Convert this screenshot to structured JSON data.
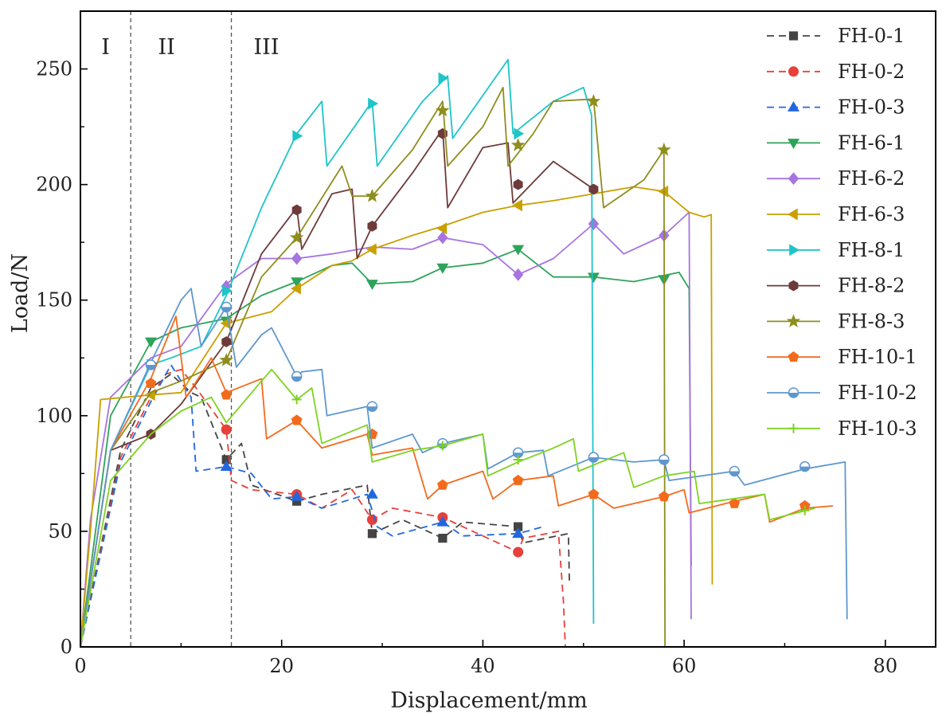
{
  "chart_data": {
    "type": "line",
    "title": "",
    "xlabel": "Displacement/mm",
    "ylabel": "Load/N",
    "xlim": [
      0,
      85
    ],
    "ylim": [
      0,
      275
    ],
    "xticks": [
      0,
      20,
      40,
      60,
      80
    ],
    "yticks": [
      0,
      50,
      100,
      150,
      200,
      250
    ],
    "grid": false,
    "legend_position": "top-right",
    "regions": [
      {
        "label": "I",
        "x_start": 0,
        "x_end": 5
      },
      {
        "label": "II",
        "x_start": 5,
        "x_end": 15
      },
      {
        "label": "III",
        "x_start": 15,
        "x_end": 85
      }
    ],
    "boundaries": [
      5,
      15
    ],
    "series": [
      {
        "name": "FH-0-1",
        "color": "#444444",
        "marker": "square",
        "dashed": true,
        "x": [
          0,
          4,
          7,
          9,
          11,
          12,
          14.5,
          16,
          17,
          21.5,
          24,
          28.5,
          29,
          32,
          36,
          38,
          43.5,
          44,
          48.5,
          48.6
        ],
        "y": [
          0,
          85,
          112,
          118,
          110,
          108,
          81,
          88,
          70,
          63,
          66,
          70,
          49,
          55,
          47,
          54,
          52,
          45,
          49,
          27
        ],
        "marker_x": [
          14.5,
          21.5,
          29,
          36,
          43.5
        ],
        "marker_y": [
          81,
          63,
          49,
          47,
          52
        ]
      },
      {
        "name": "FH-0-2",
        "color": "#e8403a",
        "marker": "circle",
        "dashed": true,
        "x": [
          0,
          4,
          7,
          8.5,
          10,
          11.5,
          14.5,
          15,
          17,
          21.5,
          24,
          27,
          29,
          31,
          36,
          38,
          43.5,
          44,
          47.5,
          48,
          48.2
        ],
        "y": [
          0,
          82,
          108,
          118,
          120,
          112,
          94,
          72,
          68,
          66,
          60,
          68,
          55,
          60,
          56,
          52,
          41,
          47,
          50,
          20,
          0
        ],
        "marker_x": [
          14.5,
          21.5,
          29,
          36,
          43.5
        ],
        "marker_y": [
          94,
          66,
          55,
          56,
          41
        ]
      },
      {
        "name": "FH-0-3",
        "color": "#2168e0",
        "marker": "triangle",
        "dashed": true,
        "x": [
          0,
          4,
          7,
          9,
          11,
          11.5,
          14.5,
          17,
          19,
          21.5,
          24,
          28.5,
          29.5,
          31,
          36,
          38,
          43.5,
          46
        ],
        "y": [
          0,
          80,
          106,
          122,
          108,
          76,
          78,
          75,
          64,
          65,
          60,
          66,
          52,
          48,
          54,
          48,
          49,
          52
        ],
        "marker_x": [
          14.5,
          21.5,
          29,
          36,
          43.5
        ],
        "marker_y": [
          78,
          65,
          66,
          54,
          49
        ]
      },
      {
        "name": "FH-6-1",
        "color": "#2ea35a",
        "marker": "triangle-down",
        "dashed": true,
        "x": [
          0,
          3,
          7,
          10,
          14.5,
          18,
          21.5,
          25,
          27,
          29,
          33,
          36,
          40,
          43.5,
          47,
          51,
          55,
          59.5,
          60.5,
          60.7
        ],
        "y": [
          0,
          100,
          132,
          138,
          142,
          152,
          158,
          165,
          166,
          157,
          158,
          164,
          166,
          172,
          160,
          160,
          158,
          162,
          155,
          35
        ],
        "marker_x": [
          7,
          14.5,
          21.5,
          29,
          36,
          43.5,
          51,
          58
        ],
        "marker_y": [
          132,
          141,
          158,
          157,
          164,
          172,
          160,
          159
        ]
      },
      {
        "name": "FH-6-2",
        "color": "#a774e0",
        "marker": "diamond",
        "dashed": true,
        "x": [
          0,
          1,
          3,
          7,
          10,
          14.5,
          18,
          21.5,
          25,
          29,
          33,
          36,
          40,
          43.5,
          47,
          51,
          54,
          58,
          60.5,
          60.7
        ],
        "y": [
          0,
          55,
          108,
          125,
          130,
          157,
          168,
          168,
          170,
          173,
          172,
          177,
          174,
          161,
          168,
          183,
          170,
          178,
          188,
          12
        ],
        "marker_x": [
          14.5,
          21.5,
          36,
          43.5,
          51,
          58
        ],
        "marker_y": [
          156,
          168,
          177,
          161,
          183,
          178
        ]
      },
      {
        "name": "FH-6-3",
        "color": "#c9a000",
        "marker": "triangle-left",
        "dashed": true,
        "x": [
          0,
          1,
          2,
          7,
          10,
          14.5,
          19,
          21.5,
          25,
          27,
          29,
          33,
          36,
          40,
          43.5,
          47,
          51,
          55,
          58,
          60.5,
          62,
          62.7,
          62.8
        ],
        "y": [
          0,
          50,
          107,
          109,
          110,
          140,
          145,
          155,
          165,
          167,
          172,
          178,
          182,
          188,
          191,
          193,
          196,
          199,
          197,
          188,
          186,
          187,
          27
        ],
        "marker_x": [
          7,
          14.5,
          21.5,
          29,
          36,
          43.5,
          58
        ],
        "marker_y": [
          109,
          140,
          155,
          172,
          181,
          191,
          197
        ]
      },
      {
        "name": "FH-8-1",
        "color": "#1ec4c8",
        "marker": "triangle-right",
        "dashed": true,
        "x": [
          0,
          3,
          7,
          9,
          12,
          14.5,
          18,
          21.5,
          24,
          24.5,
          29,
          29.5,
          34,
          36.5,
          37,
          42.5,
          43,
          47,
          50,
          50.8,
          51
        ],
        "y": [
          0,
          85,
          122,
          125,
          130,
          152,
          190,
          222,
          236,
          208,
          236,
          208,
          236,
          247,
          220,
          254,
          222,
          236,
          242,
          230,
          10
        ],
        "marker_x": [
          7,
          14.5,
          21.5,
          29,
          36,
          43.5
        ],
        "marker_y": [
          122,
          154,
          221,
          235,
          246,
          222
        ]
      },
      {
        "name": "FH-8-2",
        "color": "#6e3a3a",
        "marker": "hexagon",
        "dashed": true,
        "x": [
          0,
          3,
          7,
          10,
          14.5,
          18,
          21.5,
          22,
          25,
          27,
          27.5,
          29,
          33,
          36,
          36.5,
          40,
          42.5,
          43,
          47,
          51
        ],
        "y": [
          0,
          85,
          92,
          105,
          132,
          170,
          190,
          172,
          196,
          198,
          168,
          182,
          205,
          224,
          190,
          216,
          218,
          192,
          210,
          198
        ],
        "marker_x": [
          7,
          14.5,
          21.5,
          29,
          36,
          43.5,
          51
        ],
        "marker_y": [
          92,
          132,
          189,
          182,
          222,
          200,
          198
        ]
      },
      {
        "name": "FH-8-3",
        "color": "#8e8e1e",
        "marker": "star",
        "dashed": true,
        "x": [
          0,
          3,
          7,
          10,
          14.5,
          18,
          21.5,
          26,
          27,
          29,
          33,
          36,
          36.5,
          40,
          42,
          42.5,
          45,
          47,
          51,
          52,
          56,
          58,
          58.1
        ],
        "y": [
          0,
          85,
          110,
          115,
          124,
          160,
          177,
          208,
          195,
          195,
          215,
          236,
          208,
          225,
          242,
          208,
          222,
          236,
          237,
          190,
          202,
          215,
          0
        ],
        "marker_x": [
          14.5,
          21.5,
          29,
          36,
          43.5,
          51,
          58
        ],
        "marker_y": [
          124,
          177,
          195,
          232,
          217,
          236,
          215
        ]
      },
      {
        "name": "FH-10-1",
        "color": "#f26b1d",
        "marker": "pentagon",
        "dashed": true,
        "x": [
          0,
          3,
          7,
          9.5,
          10.5,
          12,
          13,
          14.5,
          18,
          18.5,
          21.5,
          24,
          28.5,
          29,
          33,
          34.5,
          36,
          40,
          41,
          43.5,
          47,
          47.5,
          51,
          53,
          58,
          60,
          60.5,
          65,
          68,
          68.5,
          72,
          74.8
        ],
        "y": [
          0,
          85,
          116,
          143,
          108,
          118,
          125,
          110,
          116,
          90,
          98,
          86,
          92,
          83,
          86,
          64,
          70,
          76,
          64,
          72,
          74,
          61,
          66,
          60,
          65,
          68,
          58,
          63,
          66,
          54,
          60,
          61
        ],
        "marker_x": [
          7,
          14.5,
          21.5,
          29,
          36,
          43.5,
          51,
          58,
          65,
          72
        ],
        "marker_y": [
          114,
          109,
          98,
          92,
          70,
          72,
          66,
          65,
          62,
          61
        ]
      },
      {
        "name": "FH-10-2",
        "color": "#5e97cf",
        "marker": "half-circle",
        "dashed": true,
        "x": [
          0,
          3,
          7,
          10,
          11,
          12,
          14.5,
          15.5,
          18,
          19,
          21.5,
          22,
          24,
          24.5,
          28.5,
          29,
          33,
          34,
          36,
          40,
          40.5,
          43.5,
          46,
          46.5,
          51,
          55,
          58,
          58.5,
          65,
          66,
          72,
          76,
          76.2
        ],
        "y": [
          0,
          85,
          123,
          150,
          155,
          130,
          147,
          121,
          135,
          138,
          117,
          119,
          120,
          100,
          104,
          86,
          92,
          84,
          88,
          92,
          77,
          84,
          85,
          74,
          82,
          80,
          81,
          72,
          76,
          70,
          77,
          80,
          12
        ],
        "marker_x": [
          7,
          14.5,
          21.5,
          29,
          36,
          43.5,
          51,
          58,
          65,
          72
        ],
        "marker_y": [
          122,
          147,
          117,
          104,
          88,
          84,
          82,
          81,
          76,
          78
        ]
      },
      {
        "name": "FH-10-3",
        "color": "#7ed321",
        "marker": "plus",
        "dashed": true,
        "x": [
          0,
          3,
          7,
          10,
          13,
          14.5,
          18,
          19,
          21.5,
          23,
          24,
          28.5,
          29,
          33,
          36,
          40,
          40.5,
          43.5,
          47,
          49,
          49.5,
          54,
          55,
          58,
          61,
          61.5,
          68,
          68.5,
          73
        ],
        "y": [
          0,
          72,
          92,
          102,
          108,
          97,
          115,
          120,
          107,
          112,
          88,
          96,
          80,
          85,
          87,
          92,
          74,
          80,
          86,
          90,
          76,
          84,
          69,
          74,
          76,
          62,
          66,
          55,
          60
        ],
        "marker_x": [
          21.5,
          36,
          43.5,
          72
        ],
        "marker_y": [
          107,
          87,
          81,
          59
        ]
      }
    ]
  }
}
